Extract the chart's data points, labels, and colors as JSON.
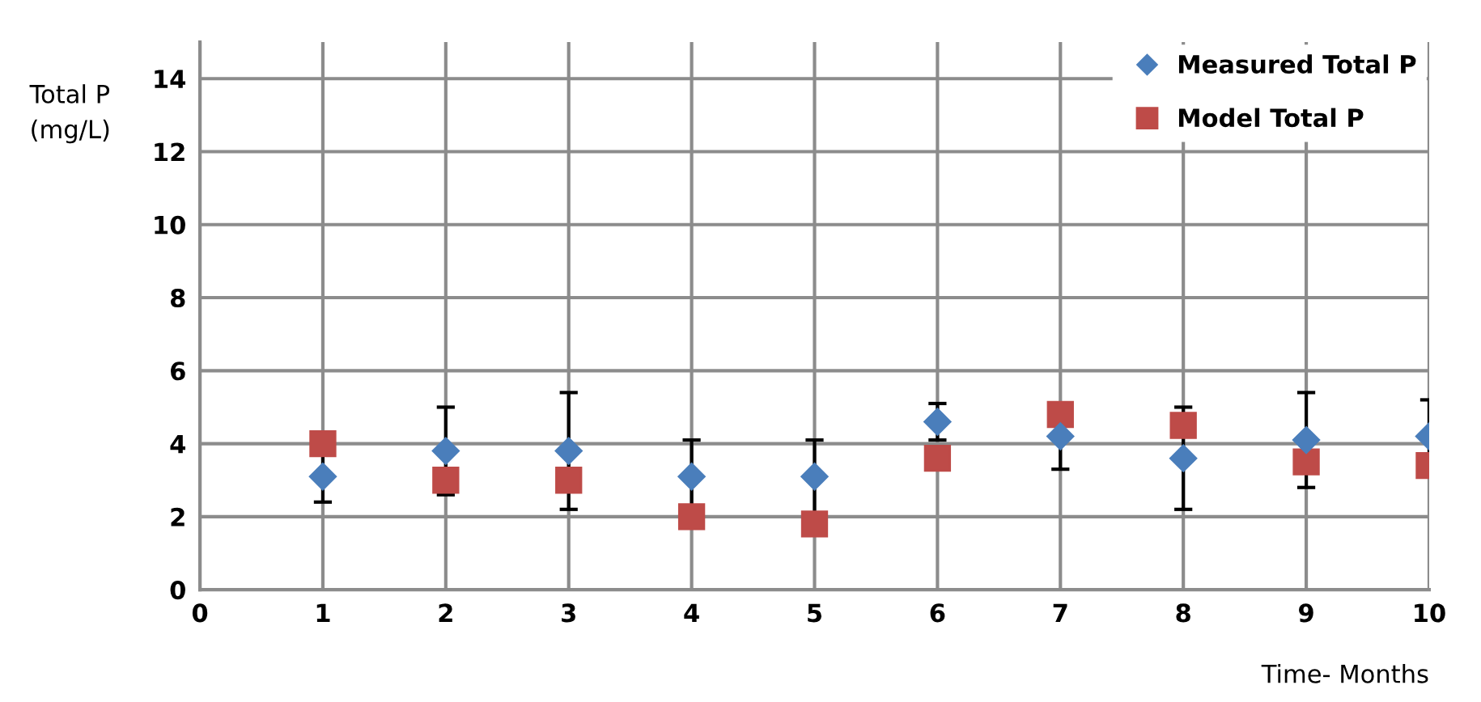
{
  "chart_data": {
    "type": "scatter",
    "xlabel": "Time- Months",
    "ylabel": "Total P\n(mg/L)",
    "x": [
      1,
      2,
      3,
      4,
      5,
      6,
      7,
      8,
      9,
      10
    ],
    "series": [
      {
        "name": "Measured Total P",
        "color": "#4a7ebb",
        "marker": "diamond",
        "values": [
          3.1,
          3.8,
          3.8,
          3.1,
          3.1,
          4.6,
          4.2,
          3.6,
          4.1,
          4.2
        ],
        "errors": [
          0.7,
          1.2,
          1.6,
          1.0,
          1.0,
          0.5,
          0.9,
          1.4,
          1.3,
          1.0
        ]
      },
      {
        "name": "Model Total P",
        "color": "#be4b48",
        "marker": "square",
        "values": [
          4.0,
          3.0,
          3.0,
          2.0,
          1.8,
          3.6,
          4.8,
          4.5,
          3.5,
          3.4
        ]
      }
    ],
    "xlim": [
      0,
      10
    ],
    "xticks": [
      0,
      1,
      2,
      3,
      4,
      5,
      6,
      7,
      8,
      9,
      10
    ],
    "ylim": [
      0,
      15
    ],
    "yticks": [
      0,
      2,
      4,
      6,
      8,
      10,
      12,
      14
    ],
    "grid": true,
    "legend": "top right"
  }
}
